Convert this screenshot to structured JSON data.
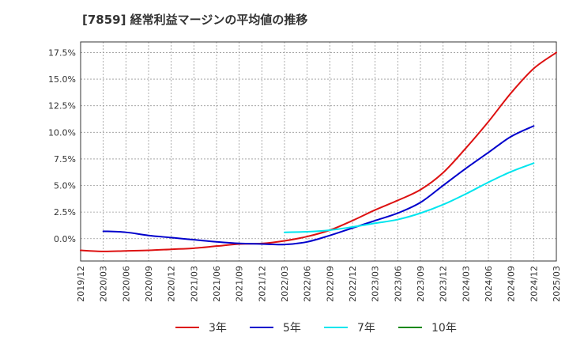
{
  "chart_data": {
    "type": "line",
    "title": "[7859]  経常利益マージンの平均値の推移",
    "xlabel": "",
    "ylabel": "",
    "x_ticks": [
      "2019/12",
      "2020/03",
      "2020/06",
      "2020/09",
      "2020/12",
      "2021/03",
      "2021/06",
      "2021/09",
      "2021/12",
      "2022/03",
      "2022/06",
      "2022/09",
      "2022/12",
      "2023/03",
      "2023/06",
      "2023/09",
      "2023/12",
      "2024/03",
      "2024/06",
      "2024/09",
      "2024/12",
      "2025/03"
    ],
    "y_ticks": [
      "0.0%",
      "2.5%",
      "5.0%",
      "7.5%",
      "10.0%",
      "12.5%",
      "15.0%",
      "17.5%"
    ],
    "y_tick_values": [
      0,
      2.5,
      5,
      7.5,
      10,
      12.5,
      15,
      17.5
    ],
    "ylim": [
      -2.1,
      18.5
    ],
    "grid": true,
    "legend_position": "bottom",
    "series": [
      {
        "name": "3年",
        "color": "#dd1111",
        "values": [
          -1.1,
          -1.2,
          -1.15,
          -1.1,
          -1.0,
          -0.9,
          -0.7,
          -0.5,
          -0.45,
          -0.2,
          0.2,
          0.8,
          1.7,
          2.7,
          3.6,
          4.6,
          6.2,
          8.5,
          11.0,
          13.7,
          16.0,
          17.5
        ]
      },
      {
        "name": "5年",
        "color": "#0000cc",
        "values": [
          null,
          0.7,
          0.6,
          0.3,
          0.1,
          -0.1,
          -0.3,
          -0.45,
          -0.5,
          -0.55,
          -0.3,
          0.3,
          1.0,
          1.7,
          2.4,
          3.4,
          5.0,
          6.6,
          8.1,
          9.6,
          10.6,
          null
        ]
      },
      {
        "name": "7年",
        "color": "#00e5ee",
        "values": [
          null,
          null,
          null,
          null,
          null,
          null,
          null,
          null,
          null,
          0.6,
          0.65,
          0.8,
          1.1,
          1.45,
          1.8,
          2.4,
          3.2,
          4.2,
          5.3,
          6.3,
          7.1,
          null
        ]
      },
      {
        "name": "10年",
        "color": "#118811",
        "values": []
      }
    ]
  }
}
